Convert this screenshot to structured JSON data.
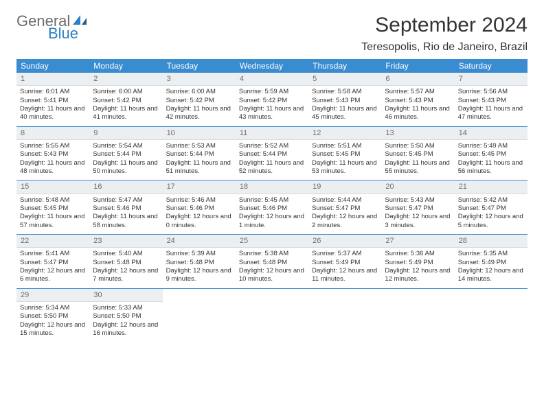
{
  "logo": {
    "text1": "General",
    "text2": "Blue",
    "color_general": "#6b6b6b",
    "color_blue": "#2c7fc2",
    "icon_color": "#2c7fc2"
  },
  "header": {
    "title": "September 2024",
    "location": "Teresopolis, Rio de Janeiro, Brazil"
  },
  "weekdays": [
    "Sunday",
    "Monday",
    "Tuesday",
    "Wednesday",
    "Thursday",
    "Friday",
    "Saturday"
  ],
  "colors": {
    "header_bg": "#3a8cd0",
    "header_text": "#ffffff",
    "daynum_bg": "#eceff1",
    "daynum_text": "#6b6b6b",
    "divider": "#3a8cd0",
    "body_text": "#333333"
  },
  "days": [
    {
      "n": "1",
      "sr": "6:01 AM",
      "ss": "5:41 PM",
      "dl": "11 hours and 40 minutes."
    },
    {
      "n": "2",
      "sr": "6:00 AM",
      "ss": "5:42 PM",
      "dl": "11 hours and 41 minutes."
    },
    {
      "n": "3",
      "sr": "6:00 AM",
      "ss": "5:42 PM",
      "dl": "11 hours and 42 minutes."
    },
    {
      "n": "4",
      "sr": "5:59 AM",
      "ss": "5:42 PM",
      "dl": "11 hours and 43 minutes."
    },
    {
      "n": "5",
      "sr": "5:58 AM",
      "ss": "5:43 PM",
      "dl": "11 hours and 45 minutes."
    },
    {
      "n": "6",
      "sr": "5:57 AM",
      "ss": "5:43 PM",
      "dl": "11 hours and 46 minutes."
    },
    {
      "n": "7",
      "sr": "5:56 AM",
      "ss": "5:43 PM",
      "dl": "11 hours and 47 minutes."
    },
    {
      "n": "8",
      "sr": "5:55 AM",
      "ss": "5:43 PM",
      "dl": "11 hours and 48 minutes."
    },
    {
      "n": "9",
      "sr": "5:54 AM",
      "ss": "5:44 PM",
      "dl": "11 hours and 50 minutes."
    },
    {
      "n": "10",
      "sr": "5:53 AM",
      "ss": "5:44 PM",
      "dl": "11 hours and 51 minutes."
    },
    {
      "n": "11",
      "sr": "5:52 AM",
      "ss": "5:44 PM",
      "dl": "11 hours and 52 minutes."
    },
    {
      "n": "12",
      "sr": "5:51 AM",
      "ss": "5:45 PM",
      "dl": "11 hours and 53 minutes."
    },
    {
      "n": "13",
      "sr": "5:50 AM",
      "ss": "5:45 PM",
      "dl": "11 hours and 55 minutes."
    },
    {
      "n": "14",
      "sr": "5:49 AM",
      "ss": "5:45 PM",
      "dl": "11 hours and 56 minutes."
    },
    {
      "n": "15",
      "sr": "5:48 AM",
      "ss": "5:45 PM",
      "dl": "11 hours and 57 minutes."
    },
    {
      "n": "16",
      "sr": "5:47 AM",
      "ss": "5:46 PM",
      "dl": "11 hours and 58 minutes."
    },
    {
      "n": "17",
      "sr": "5:46 AM",
      "ss": "5:46 PM",
      "dl": "12 hours and 0 minutes."
    },
    {
      "n": "18",
      "sr": "5:45 AM",
      "ss": "5:46 PM",
      "dl": "12 hours and 1 minute."
    },
    {
      "n": "19",
      "sr": "5:44 AM",
      "ss": "5:47 PM",
      "dl": "12 hours and 2 minutes."
    },
    {
      "n": "20",
      "sr": "5:43 AM",
      "ss": "5:47 PM",
      "dl": "12 hours and 3 minutes."
    },
    {
      "n": "21",
      "sr": "5:42 AM",
      "ss": "5:47 PM",
      "dl": "12 hours and 5 minutes."
    },
    {
      "n": "22",
      "sr": "5:41 AM",
      "ss": "5:47 PM",
      "dl": "12 hours and 6 minutes."
    },
    {
      "n": "23",
      "sr": "5:40 AM",
      "ss": "5:48 PM",
      "dl": "12 hours and 7 minutes."
    },
    {
      "n": "24",
      "sr": "5:39 AM",
      "ss": "5:48 PM",
      "dl": "12 hours and 9 minutes."
    },
    {
      "n": "25",
      "sr": "5:38 AM",
      "ss": "5:48 PM",
      "dl": "12 hours and 10 minutes."
    },
    {
      "n": "26",
      "sr": "5:37 AM",
      "ss": "5:49 PM",
      "dl": "12 hours and 11 minutes."
    },
    {
      "n": "27",
      "sr": "5:36 AM",
      "ss": "5:49 PM",
      "dl": "12 hours and 12 minutes."
    },
    {
      "n": "28",
      "sr": "5:35 AM",
      "ss": "5:49 PM",
      "dl": "12 hours and 14 minutes."
    },
    {
      "n": "29",
      "sr": "5:34 AM",
      "ss": "5:50 PM",
      "dl": "12 hours and 15 minutes."
    },
    {
      "n": "30",
      "sr": "5:33 AM",
      "ss": "5:50 PM",
      "dl": "12 hours and 16 minutes."
    }
  ],
  "labels": {
    "sunrise": "Sunrise:",
    "sunset": "Sunset:",
    "daylight": "Daylight:"
  }
}
